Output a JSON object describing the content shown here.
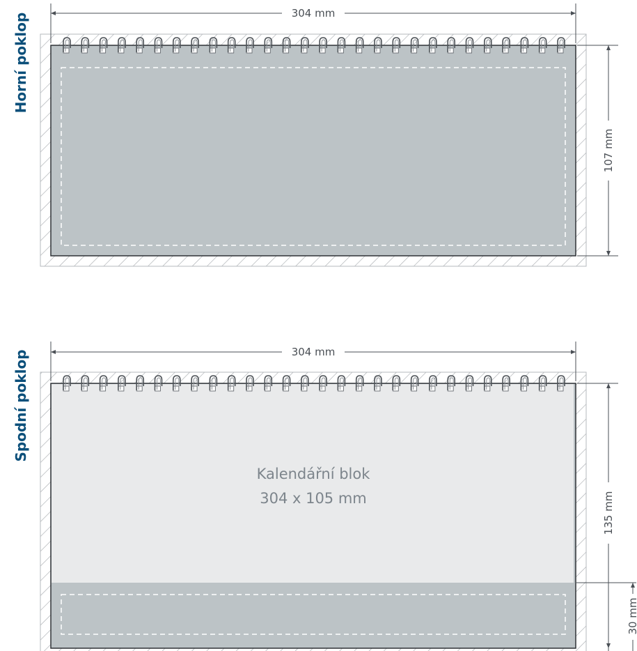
{
  "colors": {
    "accent": "#0b4f7a",
    "cover_fill": "#bcc3c6",
    "block_fill": "#e9eaeb",
    "hatch": "#a9adb1",
    "ring": "#555a5f"
  },
  "top_cover": {
    "side_label": "Horní poklop",
    "width_label": "304 mm",
    "height_label": "107 mm"
  },
  "bottom_cover": {
    "side_label": "Spodní poklop",
    "width_label": "304 mm",
    "height_label": "135 mm",
    "strip_label": "30 mm",
    "block_title": "Kalendářní blok",
    "block_size": "304 x 105 mm"
  }
}
